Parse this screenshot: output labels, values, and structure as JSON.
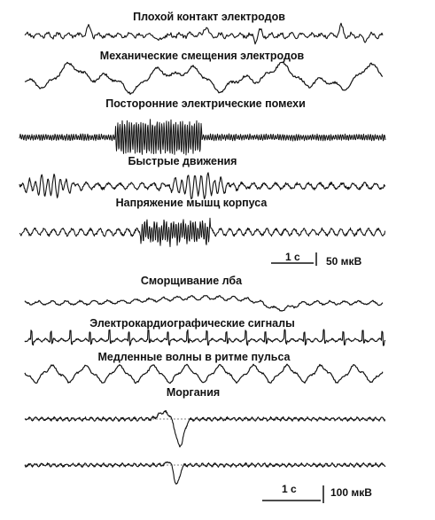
{
  "traces": [
    {
      "label": "Плохой контакт электродов"
    },
    {
      "label": "Механические смещения электродов"
    },
    {
      "label": "Посторонние электрические помехи"
    },
    {
      "label": "Быстрые движения"
    },
    {
      "label": "Напряжение мышц корпуса"
    },
    {
      "label": "Сморщивание лба"
    },
    {
      "label": "Электрокардиографические сигналы"
    },
    {
      "label": "Медленные волны в ритме пульса"
    },
    {
      "label": "Моргания"
    }
  ],
  "scale_top": {
    "time": "1 с",
    "amplitude": "50 мкВ"
  },
  "scale_bottom": {
    "time": "1 с",
    "amplitude": "100 мкВ"
  }
}
